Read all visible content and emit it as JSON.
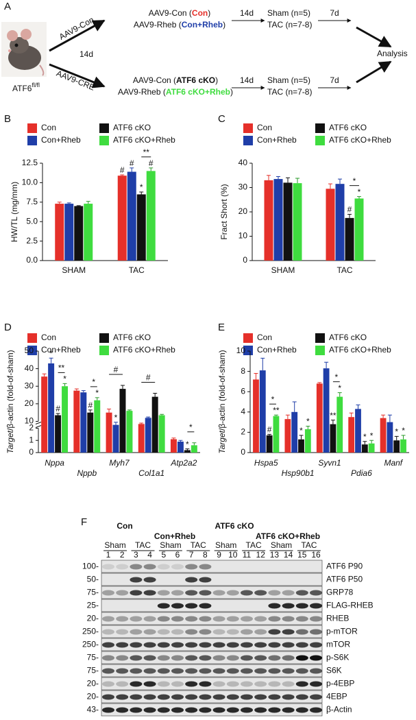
{
  "diagram": {
    "label": "A",
    "mouse": {
      "text": "ATF6",
      "sup": "fl/fl"
    },
    "arrows": {
      "top": "AAV9-Con",
      "bottom": "AAV9-CRE",
      "middle": "14d"
    },
    "top": [
      {
        "vector": "AAV9-Con (",
        "group": "Con",
        "end": ")"
      },
      {
        "vector": "AAV9-Rheb (",
        "group": "Con+Rheb",
        "end": ")"
      }
    ],
    "bottom": [
      {
        "vector": "AAV9-Con (",
        "group": "ATF6 cKO",
        "end": ")"
      },
      {
        "vector": "AAV9-Rheb (",
        "group": "ATF6 cKO+Rheb",
        "end": ")"
      }
    ],
    "surgery_delay": "14d",
    "arms": [
      "Sham (n=5)",
      "TAC (n=7-8)"
    ],
    "analysis_delay": "7d",
    "endpoint": "Analysis"
  },
  "chart_data": [
    {
      "type": "bar",
      "label": "B",
      "ylabel": "HW/TL (mg/mm)",
      "categories": [
        "SHAM",
        "TAC"
      ],
      "ylim": [
        0,
        12.5
      ],
      "yticks": [
        {
          "value": 0,
          "label": "0.0"
        },
        {
          "value": 2.5,
          "label": "2.5"
        },
        {
          "value": 5,
          "label": "5.0"
        },
        {
          "value": 7.5,
          "label": "7.5"
        },
        {
          "value": 10,
          "label": "10.0"
        },
        {
          "value": 12.5,
          "label": "12.5"
        }
      ],
      "series": [
        {
          "name": "Con",
          "color": "#e5302a",
          "values": [
            7.3,
            10.9
          ],
          "errors": [
            0.2,
            0.1
          ],
          "markers": [
            null,
            "#"
          ]
        },
        {
          "name": "Con+Rheb",
          "color": "#1f3ea8",
          "values": [
            7.3,
            11.4
          ],
          "errors": [
            0.1,
            0.5
          ],
          "markers": [
            null,
            "#"
          ]
        },
        {
          "name": "ATF6 cKO",
          "color": "#111111",
          "values": [
            7.0,
            8.5
          ],
          "errors": [
            0.05,
            0.3
          ],
          "markers": [
            null,
            "*"
          ]
        },
        {
          "name": "ATF6 cKO+Rheb",
          "color": "#3fdc3f",
          "values": [
            7.3,
            11.5
          ],
          "errors": [
            0.3,
            0.4
          ],
          "markers": [
            null,
            "#"
          ]
        }
      ],
      "brackets": [
        {
          "category": "TAC",
          "between": [
            "ATF6 cKO",
            "ATF6 cKO+Rheb"
          ],
          "label": "**"
        }
      ]
    },
    {
      "type": "bar",
      "label": "C",
      "ylabel": "Fract Short (%)",
      "categories": [
        "SHAM",
        "TAC"
      ],
      "ylim": [
        0,
        40
      ],
      "yticks": [
        0,
        10,
        20,
        30,
        40
      ],
      "series": [
        {
          "name": "Con",
          "color": "#e5302a",
          "values": [
            33,
            29.5
          ],
          "errors": [
            2,
            2
          ],
          "markers": [
            null,
            null
          ]
        },
        {
          "name": "Con+Rheb",
          "color": "#1f3ea8",
          "values": [
            33.5,
            31.5
          ],
          "errors": [
            1,
            2
          ],
          "markers": [
            null,
            null
          ]
        },
        {
          "name": "ATF6 cKO",
          "color": "#111111",
          "values": [
            32,
            17.5
          ],
          "errors": [
            2,
            1.5
          ],
          "markers": [
            null,
            "#"
          ]
        },
        {
          "name": "ATF6 cKO+Rheb",
          "color": "#3fdc3f",
          "values": [
            31.8,
            25.5
          ],
          "errors": [
            2,
            0.8
          ],
          "markers": [
            null,
            "*"
          ]
        }
      ],
      "brackets": [
        {
          "category": "TAC",
          "between": [
            "ATF6 cKO",
            "ATF6 cKO+Rheb"
          ],
          "label": "*"
        }
      ]
    },
    {
      "type": "bar",
      "label": "D",
      "ylabel_italic": "Target",
      "ylabel": "/β-actin (fold-of-sham)",
      "italic_categories": true,
      "categories": [
        "Nppa",
        "Nppb",
        "Myh7",
        "Col1a1",
        "Atp2a2"
      ],
      "ylim": [
        0,
        50
      ],
      "ybreak": [
        2,
        10
      ],
      "yticks": [
        0,
        1,
        2,
        10,
        20,
        30,
        40,
        50
      ],
      "series": [
        {
          "name": "Con",
          "color": "#e5302a",
          "values": [
            35.5,
            27.5,
            15,
            8.5,
            1.1
          ],
          "errors": [
            1.5,
            1,
            2,
            0.5,
            0.1
          ],
          "markers": [
            null,
            null,
            null,
            null,
            null
          ]
        },
        {
          "name": "Con+Rheb",
          "color": "#1f3ea8",
          "values": [
            43,
            26.5,
            8,
            12,
            0.9
          ],
          "errors": [
            3,
            1,
            1.5,
            0.5,
            0.1
          ],
          "markers": [
            "*",
            null,
            "*",
            null,
            null
          ]
        },
        {
          "name": "ATF6 cKO",
          "color": "#111111",
          "values": [
            13.5,
            15,
            28.5,
            24,
            0.2
          ],
          "errors": [
            1,
            1.5,
            2,
            2,
            0.1
          ],
          "markers": [
            "#",
            "#",
            null,
            null,
            "*"
          ]
        },
        {
          "name": "ATF6 cKO+Rheb",
          "color": "#3fdc3f",
          "values": [
            30,
            22,
            16,
            13.5,
            0.6
          ],
          "errors": [
            1.5,
            1.5,
            0.5,
            0.5,
            0.2
          ],
          "markers": [
            "*",
            "*",
            null,
            null,
            null
          ]
        }
      ],
      "brackets": [
        {
          "category": "Nppa",
          "between": [
            "ATF6 cKO",
            "ATF6 cKO+Rheb"
          ],
          "label": "**"
        },
        {
          "category": "Nppb",
          "between": [
            "ATF6 cKO",
            "ATF6 cKO+Rheb"
          ],
          "label": "*"
        },
        {
          "category": "Myh7",
          "between": [
            "Con",
            "ATF6 cKO"
          ],
          "label": "#"
        },
        {
          "category": "Col1a1",
          "between": [
            "Con",
            "ATF6 cKO"
          ],
          "label": "#"
        },
        {
          "category": "Atp2a2",
          "between": [
            "ATF6 cKO",
            "ATF6 cKO+Rheb"
          ],
          "label": "*"
        }
      ]
    },
    {
      "type": "bar",
      "label": "E",
      "ylabel_italic": "Target",
      "ylabel": "/β-actin (fold-of-sham)",
      "italic_categories": true,
      "categories": [
        "Hspa5",
        "Hsp90b1",
        "Syvn1",
        "Pdia6",
        "Manf"
      ],
      "ylim": [
        0,
        10
      ],
      "yticks": [
        0,
        2,
        4,
        6,
        8,
        10
      ],
      "series": [
        {
          "name": "Con",
          "color": "#e5302a",
          "values": [
            7.2,
            3.3,
            6.8,
            3.5,
            3.4
          ],
          "errors": [
            0.6,
            0.4,
            0.1,
            0.4,
            0.3
          ],
          "markers": [
            null,
            null,
            null,
            null,
            null
          ]
        },
        {
          "name": "Con+Rheb",
          "color": "#1f3ea8",
          "values": [
            8.1,
            4.0,
            8.3,
            4.3,
            3.0
          ],
          "errors": [
            1.2,
            1.0,
            0.6,
            0.4,
            0.7
          ],
          "markers": [
            null,
            null,
            null,
            null,
            null
          ]
        },
        {
          "name": "ATF6 cKO",
          "color": "#111111",
          "values": [
            1.7,
            1.3,
            2.8,
            0.8,
            1.2
          ],
          "errors": [
            0.1,
            0.4,
            0.4,
            0.3,
            0.4
          ],
          "markers": [
            "#",
            "*",
            "**",
            "*",
            "*"
          ]
        },
        {
          "name": "ATF6 cKO+Rheb",
          "color": "#3fdc3f",
          "values": [
            3.6,
            2.3,
            5.5,
            0.9,
            1.3
          ],
          "errors": [
            0.1,
            0.3,
            0.4,
            0.3,
            0.4
          ],
          "markers": [
            "**",
            "*",
            "*",
            "*",
            "*"
          ]
        }
      ],
      "brackets": [
        {
          "category": "Hspa5",
          "between": [
            "ATF6 cKO",
            "ATF6 cKO+Rheb"
          ],
          "label": "*"
        },
        {
          "category": "Syvn1",
          "between": [
            "ATF6 cKO",
            "ATF6 cKO+Rheb"
          ],
          "label": "*"
        }
      ]
    }
  ],
  "blot": {
    "label": "F",
    "groups": [
      {
        "name": "Con",
        "arms": [
          "Sham",
          "TAC"
        ]
      },
      {
        "name": "Con+Rheb",
        "arms": [
          "Sham",
          "TAC"
        ]
      },
      {
        "name": "ATF6 cKO",
        "arms": [
          "Sham",
          "TAC"
        ]
      },
      {
        "name": "ATF6 cKO+Rheb",
        "arms": [
          "Sham",
          "TAC"
        ]
      }
    ],
    "lanes": [
      "1",
      "2",
      "3",
      "4",
      "5",
      "6",
      "7",
      "8",
      "9",
      "10",
      "11",
      "12",
      "13",
      "14",
      "15",
      "16"
    ],
    "rows": [
      {
        "marker": "100-",
        "protein": "ATF6 P90"
      },
      {
        "marker": "50-",
        "protein": "ATF6 P50"
      },
      {
        "marker": "75-",
        "protein": "GRP78"
      },
      {
        "marker": "25-",
        "protein": "FLAG-RHEB"
      },
      {
        "marker": "20-",
        "protein": "RHEB"
      },
      {
        "marker": "250-",
        "protein": "p-mTOR"
      },
      {
        "marker": "250-",
        "protein": "mTOR"
      },
      {
        "marker": "75-",
        "protein": "p-S6K"
      },
      {
        "marker": "75-",
        "protein": "S6K"
      },
      {
        "marker": "20-",
        "protein": "p-4EBP"
      },
      {
        "marker": "20-",
        "protein": "4EBP"
      },
      {
        "marker": "43-",
        "protein": "β-Actin"
      }
    ]
  }
}
